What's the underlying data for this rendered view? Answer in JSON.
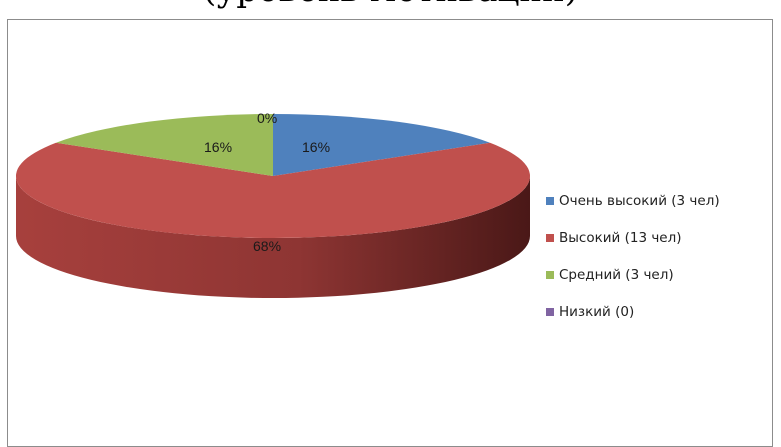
{
  "chart_data": {
    "type": "pie",
    "title": "(уровень мотивации)",
    "series": [
      {
        "label": "Очень высокий (3 чел)",
        "value": 16,
        "data_label": "16%",
        "color": "#4f81bd"
      },
      {
        "label": "Высокий  (13 чел)",
        "value": 68,
        "data_label": "68%",
        "color": "#c0504d"
      },
      {
        "label": "Средний (3 чел)",
        "value": 16,
        "data_label": "16%",
        "color": "#9bbb59"
      },
      {
        "label": "Низкий (0)",
        "value": 0,
        "data_label": "0%",
        "color": "#8064a2"
      }
    ],
    "legend_position": "right",
    "three_d": true
  }
}
